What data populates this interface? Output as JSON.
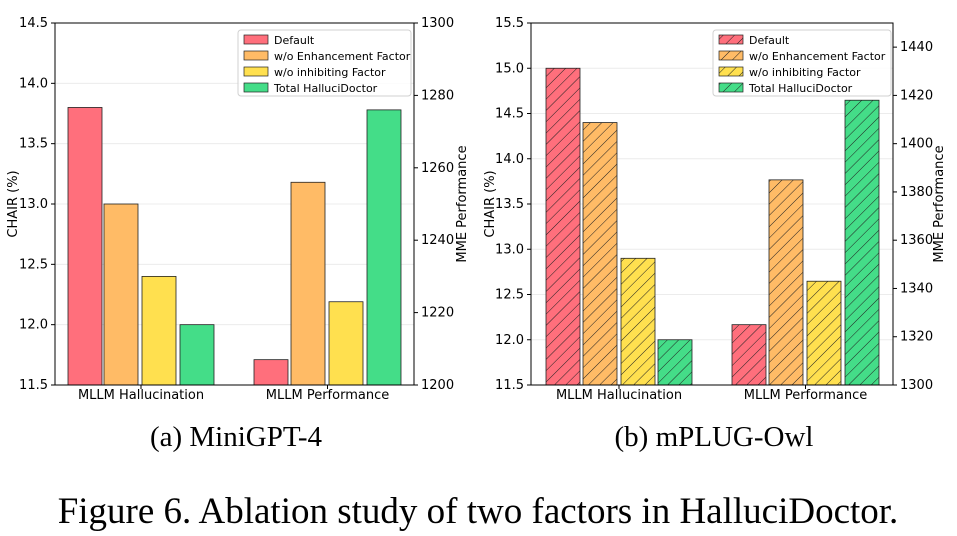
{
  "caption": "Figure 6. Ablation study of two factors in HalluciDoctor.",
  "colors": {
    "default": "#ff6f7c",
    "enhancement": "#ffbb66",
    "inhibiting": "#ffe04f",
    "total": "#44dd88"
  },
  "chart_data": [
    {
      "type": "bar",
      "panel_label": "(a) MiniGPT-4",
      "hatched": false,
      "categories": [
        "MLLM Hallucination",
        "MLLM Performance"
      ],
      "series": [
        {
          "name": "Default",
          "color": "#ff6f7c"
        },
        {
          "name": "w/o Enhancement Factor",
          "color": "#ffbb66"
        },
        {
          "name": "w/o inhibiting Factor",
          "color": "#ffe04f"
        },
        {
          "name": "Total HalluciDoctor",
          "color": "#44dd88"
        }
      ],
      "left_axis": {
        "label": "CHAIR (%)",
        "range": [
          11.5,
          14.5
        ],
        "ticks": [
          "11.5",
          "12.0",
          "12.5",
          "13.0",
          "13.5",
          "14.0",
          "14.5"
        ]
      },
      "right_axis": {
        "label": "MME Performance",
        "range": [
          1200,
          1300
        ],
        "ticks": [
          "1200",
          "1220",
          "1240",
          "1260",
          "1280",
          "1300"
        ]
      },
      "hallucination_values": [
        13.8,
        13.0,
        12.4,
        12.0
      ],
      "performance_values": [
        1207,
        1256,
        1223,
        1276
      ],
      "legend_position": "top-right"
    },
    {
      "type": "bar",
      "panel_label": "(b) mPLUG-Owl",
      "hatched": true,
      "categories": [
        "MLLM Hallucination",
        "MLLM Performance"
      ],
      "series": [
        {
          "name": "Default",
          "color": "#ff6f7c"
        },
        {
          "name": "w/o Enhancement Factor",
          "color": "#ffbb66"
        },
        {
          "name": "w/o inhibiting Factor",
          "color": "#ffe04f"
        },
        {
          "name": "Total HalluciDoctor",
          "color": "#44dd88"
        }
      ],
      "left_axis": {
        "label": "CHAIR (%)",
        "range": [
          11.5,
          15.5
        ],
        "ticks": [
          "11.5",
          "12.0",
          "12.5",
          "13.0",
          "13.5",
          "14.0",
          "14.5",
          "15.0",
          "15.5"
        ]
      },
      "right_axis": {
        "label": "MME Performance",
        "range": [
          1300,
          1450
        ],
        "ticks": [
          "1300",
          "1320",
          "1340",
          "1360",
          "1380",
          "1400",
          "1420",
          "1440"
        ]
      },
      "hallucination_values": [
        15.0,
        14.4,
        12.9,
        12.0
      ],
      "performance_values": [
        1325,
        1385,
        1343,
        1418
      ],
      "legend_position": "top-right"
    }
  ]
}
